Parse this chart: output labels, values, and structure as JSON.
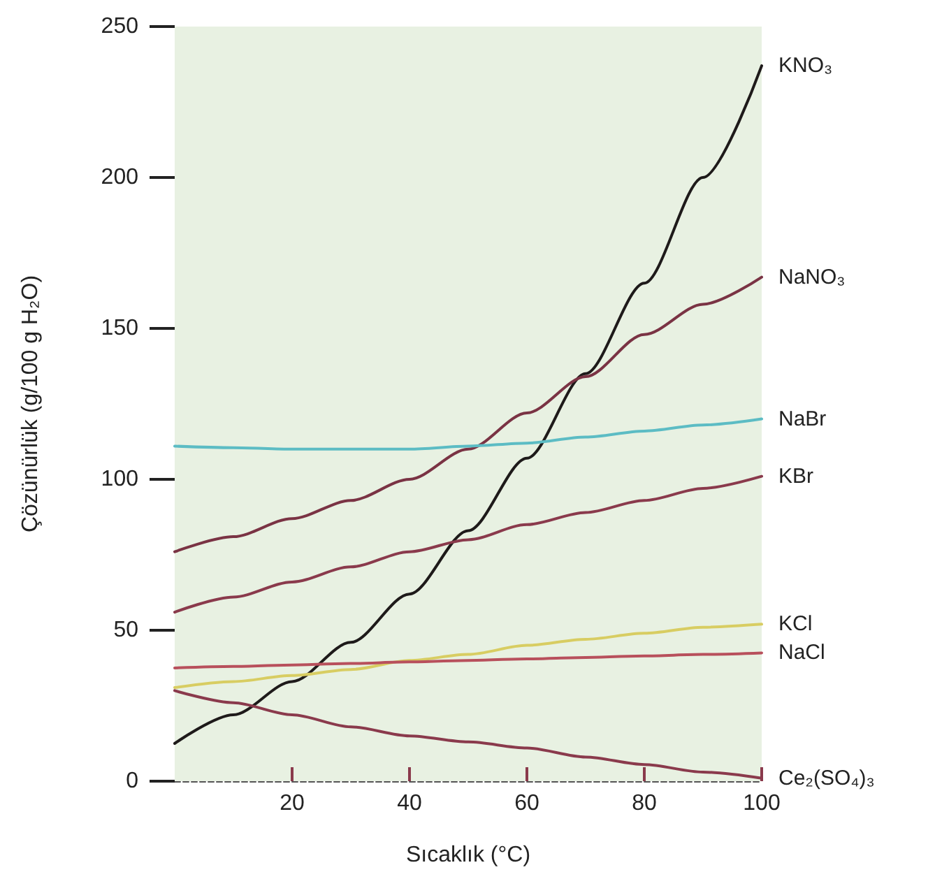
{
  "chart_data": {
    "type": "line",
    "xlabel": "Sıcaklık (°C)",
    "ylabel": "Çözünürlük (g/100 g H₂O)",
    "x": [
      0,
      10,
      20,
      30,
      40,
      50,
      60,
      70,
      80,
      90,
      100
    ],
    "xlim": [
      0,
      100
    ],
    "xticks": [
      20,
      40,
      60,
      80,
      100
    ],
    "ylim": [
      0,
      250
    ],
    "yticks": [
      0,
      50,
      100,
      150,
      200,
      250
    ],
    "grid": false,
    "legend": false,
    "marker": "none",
    "line_style": "solid",
    "series": [
      {
        "name": "KNO₃",
        "color": "#1e1a1a",
        "values": [
          12.5,
          22,
          33,
          46,
          62,
          83,
          107,
          135,
          165,
          200,
          237
        ]
      },
      {
        "name": "NaNO₃",
        "color": "#7a3344",
        "values": [
          76,
          81,
          87,
          93,
          100,
          110,
          122,
          134,
          148,
          158,
          167
        ]
      },
      {
        "name": "NaBr",
        "color": "#5cbcc4",
        "values": [
          111,
          110.5,
          110,
          110,
          110,
          111,
          112,
          114,
          116,
          118,
          120
        ]
      },
      {
        "name": "KBr",
        "color": "#8a3a4c",
        "values": [
          56,
          61,
          66,
          71,
          76,
          80,
          85,
          89,
          93,
          97,
          101
        ]
      },
      {
        "name": "KCl",
        "color": "#d8cd62",
        "values": [
          31,
          33,
          35,
          37,
          40,
          42,
          45,
          47,
          49,
          51,
          52
        ]
      },
      {
        "name": "NaCl",
        "color": "#b8505c",
        "values": [
          37.5,
          38,
          38.5,
          39,
          39.5,
          40,
          40.5,
          41,
          41.5,
          42,
          42.5
        ]
      },
      {
        "name": "Ce₂(SO₄)₃",
        "color": "#8a3a4c",
        "values": [
          30,
          26,
          22,
          18,
          15,
          13,
          11,
          8,
          5.5,
          3,
          1
        ]
      }
    ]
  }
}
